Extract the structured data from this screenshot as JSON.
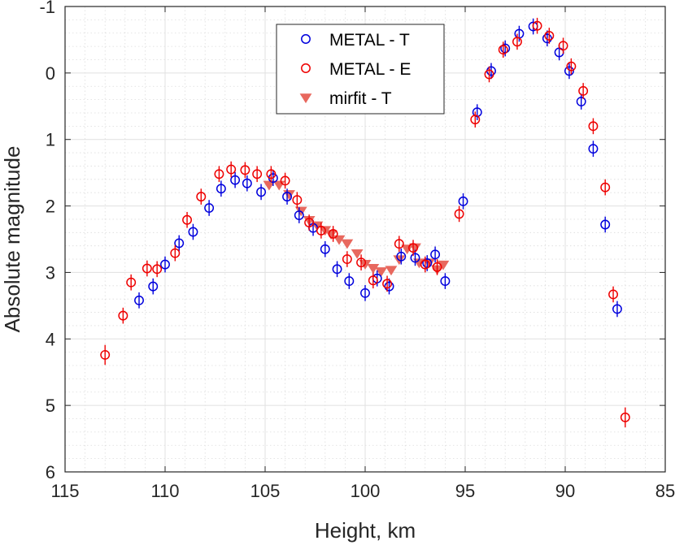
{
  "chart_data": {
    "type": "scatter",
    "title": "",
    "xlabel": "Height, km",
    "ylabel": "Absolute magnitude",
    "xlim": [
      115,
      85
    ],
    "ylim": [
      -1,
      6
    ],
    "x_reversed": true,
    "y_reversed": true,
    "xticks": [
      115,
      110,
      105,
      100,
      95,
      90,
      85
    ],
    "yticks": [
      -1,
      0,
      1,
      2,
      3,
      4,
      5,
      6
    ],
    "grid": true,
    "minor_grid": true,
    "legend_position": "top-center",
    "series": [
      {
        "name": "METAL - T",
        "marker": "circle-open",
        "color": "#0000dd",
        "points": [
          {
            "x": 111.3,
            "y": 3.42,
            "err": 0.12
          },
          {
            "x": 110.6,
            "y": 3.21,
            "err": 0.12
          },
          {
            "x": 110.0,
            "y": 2.88,
            "err": 0.12
          },
          {
            "x": 109.3,
            "y": 2.56,
            "err": 0.12
          },
          {
            "x": 108.6,
            "y": 2.39,
            "err": 0.12
          },
          {
            "x": 107.8,
            "y": 2.03,
            "err": 0.12
          },
          {
            "x": 107.2,
            "y": 1.74,
            "err": 0.12
          },
          {
            "x": 106.5,
            "y": 1.61,
            "err": 0.12
          },
          {
            "x": 105.9,
            "y": 1.66,
            "err": 0.12
          },
          {
            "x": 105.2,
            "y": 1.79,
            "err": 0.12
          },
          {
            "x": 104.6,
            "y": 1.58,
            "err": 0.12
          },
          {
            "x": 103.9,
            "y": 1.86,
            "err": 0.12
          },
          {
            "x": 103.3,
            "y": 2.14,
            "err": 0.12
          },
          {
            "x": 102.6,
            "y": 2.33,
            "err": 0.12
          },
          {
            "x": 102.0,
            "y": 2.65,
            "err": 0.12
          },
          {
            "x": 101.4,
            "y": 2.95,
            "err": 0.12
          },
          {
            "x": 100.8,
            "y": 3.13,
            "err": 0.12
          },
          {
            "x": 100.0,
            "y": 3.31,
            "err": 0.12
          },
          {
            "x": 99.4,
            "y": 3.09,
            "err": 0.12
          },
          {
            "x": 98.8,
            "y": 3.21,
            "err": 0.12
          },
          {
            "x": 98.2,
            "y": 2.76,
            "err": 0.12
          },
          {
            "x": 97.5,
            "y": 2.78,
            "err": 0.12
          },
          {
            "x": 96.9,
            "y": 2.86,
            "err": 0.12
          },
          {
            "x": 96.5,
            "y": 2.73,
            "err": 0.12
          },
          {
            "x": 96.0,
            "y": 3.13,
            "err": 0.12
          },
          {
            "x": 95.1,
            "y": 1.93,
            "err": 0.12
          },
          {
            "x": 94.4,
            "y": 0.59,
            "err": 0.12
          },
          {
            "x": 93.7,
            "y": -0.03,
            "err": 0.12
          },
          {
            "x": 93.0,
            "y": -0.37,
            "err": 0.12
          },
          {
            "x": 92.3,
            "y": -0.59,
            "err": 0.12
          },
          {
            "x": 91.6,
            "y": -0.7,
            "err": 0.12
          },
          {
            "x": 90.9,
            "y": -0.52,
            "err": 0.12
          },
          {
            "x": 90.3,
            "y": -0.31,
            "err": 0.12
          },
          {
            "x": 89.8,
            "y": -0.03,
            "err": 0.12
          },
          {
            "x": 89.2,
            "y": 0.43,
            "err": 0.12
          },
          {
            "x": 88.6,
            "y": 1.14,
            "err": 0.12
          },
          {
            "x": 88.0,
            "y": 2.28,
            "err": 0.12
          },
          {
            "x": 87.4,
            "y": 3.55,
            "err": 0.12
          }
        ]
      },
      {
        "name": "METAL - E",
        "marker": "circle-open",
        "color": "#ee0000",
        "points": [
          {
            "x": 113.0,
            "y": 4.24,
            "err": 0.15
          },
          {
            "x": 112.1,
            "y": 3.65,
            "err": 0.12
          },
          {
            "x": 111.7,
            "y": 3.15,
            "err": 0.12
          },
          {
            "x": 110.9,
            "y": 2.94,
            "err": 0.12
          },
          {
            "x": 110.4,
            "y": 2.95,
            "err": 0.12
          },
          {
            "x": 109.5,
            "y": 2.71,
            "err": 0.12
          },
          {
            "x": 108.9,
            "y": 2.21,
            "err": 0.12
          },
          {
            "x": 108.2,
            "y": 1.86,
            "err": 0.12
          },
          {
            "x": 107.3,
            "y": 1.52,
            "err": 0.12
          },
          {
            "x": 106.7,
            "y": 1.45,
            "err": 0.12
          },
          {
            "x": 106.0,
            "y": 1.46,
            "err": 0.12
          },
          {
            "x": 105.4,
            "y": 1.52,
            "err": 0.12
          },
          {
            "x": 104.7,
            "y": 1.52,
            "err": 0.12
          },
          {
            "x": 104.0,
            "y": 1.62,
            "err": 0.12
          },
          {
            "x": 103.4,
            "y": 1.91,
            "err": 0.12
          },
          {
            "x": 102.8,
            "y": 2.25,
            "err": 0.12
          },
          {
            "x": 102.2,
            "y": 2.37,
            "err": 0.12
          },
          {
            "x": 101.6,
            "y": 2.42,
            "err": 0.12
          },
          {
            "x": 100.9,
            "y": 2.8,
            "err": 0.12
          },
          {
            "x": 100.2,
            "y": 2.85,
            "err": 0.12
          },
          {
            "x": 99.6,
            "y": 3.12,
            "err": 0.12
          },
          {
            "x": 98.9,
            "y": 3.17,
            "err": 0.12
          },
          {
            "x": 98.3,
            "y": 2.57,
            "err": 0.12
          },
          {
            "x": 97.6,
            "y": 2.63,
            "err": 0.12
          },
          {
            "x": 97.0,
            "y": 2.88,
            "err": 0.12
          },
          {
            "x": 96.4,
            "y": 2.92,
            "err": 0.12
          },
          {
            "x": 95.3,
            "y": 2.12,
            "err": 0.12
          },
          {
            "x": 94.5,
            "y": 0.7,
            "err": 0.12
          },
          {
            "x": 93.8,
            "y": 0.02,
            "err": 0.12
          },
          {
            "x": 93.1,
            "y": -0.35,
            "err": 0.12
          },
          {
            "x": 92.4,
            "y": -0.47,
            "err": 0.12
          },
          {
            "x": 91.4,
            "y": -0.71,
            "err": 0.12
          },
          {
            "x": 90.8,
            "y": -0.56,
            "err": 0.12
          },
          {
            "x": 90.1,
            "y": -0.41,
            "err": 0.12
          },
          {
            "x": 89.7,
            "y": -0.1,
            "err": 0.12
          },
          {
            "x": 89.1,
            "y": 0.27,
            "err": 0.12
          },
          {
            "x": 88.6,
            "y": 0.8,
            "err": 0.12
          },
          {
            "x": 88.0,
            "y": 1.72,
            "err": 0.12
          },
          {
            "x": 87.6,
            "y": 3.33,
            "err": 0.12
          },
          {
            "x": 87.0,
            "y": 5.18,
            "err": 0.15
          }
        ]
      },
      {
        "name": "mirfit - T",
        "marker": "triangle-down-filled",
        "color": "#e8685e",
        "points": [
          {
            "x": 104.8,
            "y": 1.68
          },
          {
            "x": 104.3,
            "y": 1.68
          },
          {
            "x": 103.8,
            "y": 1.82
          },
          {
            "x": 103.2,
            "y": 2.07
          },
          {
            "x": 102.8,
            "y": 2.21
          },
          {
            "x": 102.4,
            "y": 2.29
          },
          {
            "x": 102.0,
            "y": 2.36
          },
          {
            "x": 101.7,
            "y": 2.42
          },
          {
            "x": 101.3,
            "y": 2.5
          },
          {
            "x": 100.9,
            "y": 2.56
          },
          {
            "x": 100.4,
            "y": 2.71
          },
          {
            "x": 100.0,
            "y": 2.87
          },
          {
            "x": 99.6,
            "y": 2.93
          },
          {
            "x": 99.2,
            "y": 2.98
          },
          {
            "x": 98.7,
            "y": 2.96
          },
          {
            "x": 98.3,
            "y": 2.8
          },
          {
            "x": 97.9,
            "y": 2.64
          },
          {
            "x": 97.5,
            "y": 2.62
          },
          {
            "x": 97.3,
            "y": 2.85
          },
          {
            "x": 96.8,
            "y": 2.85
          },
          {
            "x": 96.4,
            "y": 2.95
          },
          {
            "x": 96.1,
            "y": 2.88
          }
        ]
      }
    ]
  }
}
